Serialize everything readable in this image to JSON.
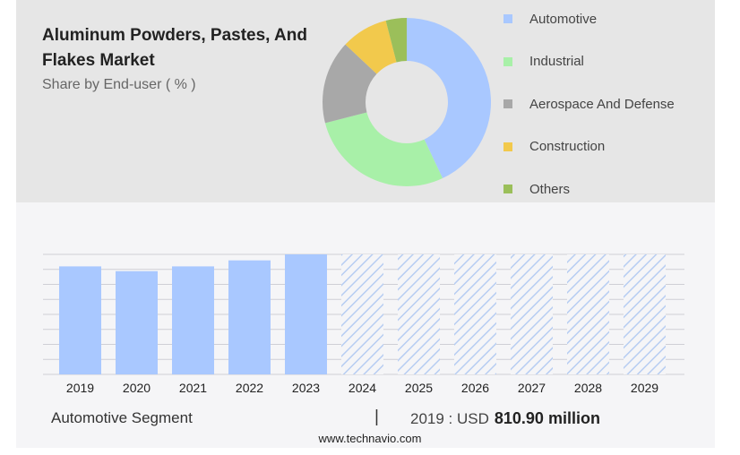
{
  "title": "Aluminum Powders, Pastes, And Flakes Market",
  "subtitle": "Share by End-user ( % )",
  "segment_label": "Automotive Segment",
  "divider": "|",
  "stat": {
    "year_prefix": "2019 : USD",
    "value": "810.90 million"
  },
  "footer_url": "www.technavio.com",
  "hatch_color": "#b7cdf2",
  "chart_data": [
    {
      "type": "pie",
      "style": "donut",
      "labels": [
        "Automotive",
        "Industrial",
        "Aerospace And Defense",
        "Construction",
        "Others"
      ],
      "values": [
        43,
        28,
        16,
        9,
        4
      ],
      "colors": [
        "#a9c8ff",
        "#a8f0a8",
        "#a8a8a8",
        "#f2c94c",
        "#9bbf5a"
      ],
      "legend_position": "right"
    },
    {
      "type": "bar",
      "categories": [
        "2019",
        "2020",
        "2021",
        "2022",
        "2023",
        "2024",
        "2025",
        "2026",
        "2027",
        "2028",
        "2029"
      ],
      "values": [
        90,
        86,
        90,
        95,
        100,
        100,
        100,
        100,
        100,
        100,
        100
      ],
      "forecast_from": "2024",
      "ylim": [
        0,
        100
      ],
      "grid": true,
      "bar_color": "#a9c8ff"
    }
  ]
}
